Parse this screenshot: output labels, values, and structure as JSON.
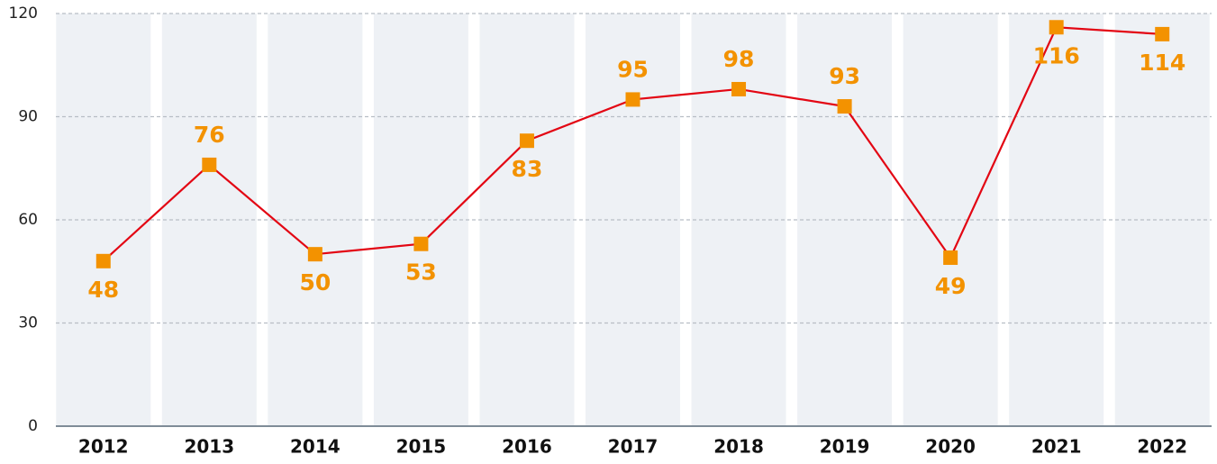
{
  "chart_data": {
    "type": "line",
    "categories": [
      "2012",
      "2013",
      "2014",
      "2015",
      "2016",
      "2017",
      "2018",
      "2019",
      "2020",
      "2021",
      "2022"
    ],
    "series": [
      {
        "color": "#e30613",
        "marker_color": "#f39200",
        "values": [
          48,
          76,
          50,
          53,
          83,
          95,
          98,
          93,
          49,
          116,
          114
        ]
      }
    ],
    "ylim": [
      0,
      120
    ],
    "yticks": [
      0,
      30,
      60,
      90,
      120
    ],
    "grid": true
  }
}
